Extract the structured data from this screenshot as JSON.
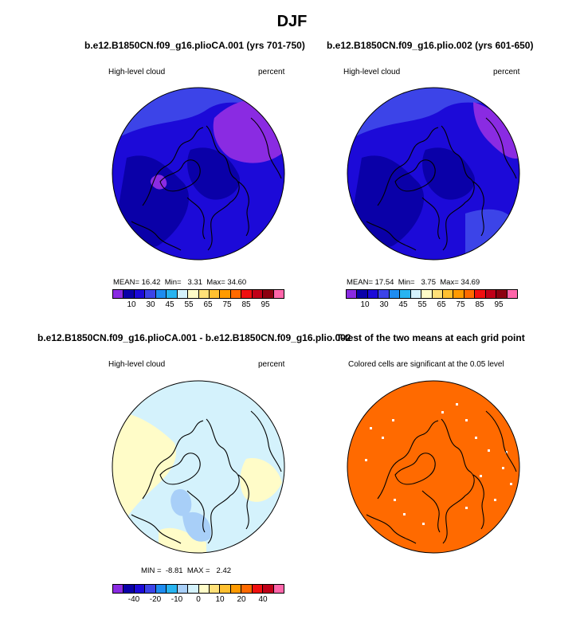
{
  "title": "DJF",
  "panels": [
    {
      "id": "p1",
      "title": "b.e12.B1850CN.f09_g16.plioCA.001 (yrs 701-750)",
      "left_label": "High-level cloud",
      "right_label": "percent",
      "stats": {
        "mean_label": "MEAN=",
        "mean": "16.42",
        "min_label": "Min=",
        "min": "3.31",
        "max_label": "Max=",
        "max": "34.60"
      },
      "colorbar_labels": [
        "10",
        "30",
        "45",
        "55",
        "65",
        "75",
        "85",
        "95"
      ]
    },
    {
      "id": "p2",
      "title": "b.e12.B1850CN.f09_g16.plio.002 (yrs 601-650)",
      "left_label": "High-level cloud",
      "right_label": "percent",
      "stats": {
        "mean_label": "MEAN=",
        "mean": "17.54",
        "min_label": "Min=",
        "min": "3.75",
        "max_label": "Max=",
        "max": "34.69"
      },
      "colorbar_labels": [
        "10",
        "30",
        "45",
        "55",
        "65",
        "75",
        "85",
        "95"
      ]
    },
    {
      "id": "p3",
      "title": "b.e12.B1850CN.f09_g16.plioCA.001 - b.e12.B1850CN.f09_g16.plio.002",
      "left_label": "High-level cloud",
      "right_label": "percent",
      "stats": {
        "min_label": "MIN =",
        "min": "-8.81",
        "max_label": "MAX =",
        "max": "2.42"
      },
      "colorbar_labels": [
        "-40",
        "-20",
        "-10",
        "0",
        "10",
        "20",
        "40"
      ]
    },
    {
      "id": "p4",
      "title": "T-test of the two means at each grid point",
      "left_label": "Colored cells are significant at the 0.05 level"
    }
  ],
  "colors": {
    "cloud_base": "#1c0ad8",
    "cloud_dark": "#0a00a8",
    "cloud_mid": "#3c44e8",
    "cloud_purple": "#8a2be2",
    "diff_base": "#d4f2fc",
    "diff_yellow": "#fffcc8",
    "diff_blue": "#a8cff8",
    "ttest_fill": "#ff6a00",
    "coast": "#000000"
  },
  "colorbar_full": [
    "#8a2be2",
    "#0a00a8",
    "#1c0ad8",
    "#3c44e8",
    "#1e8cf0",
    "#28b4f0",
    "#d4f2fc",
    "#fffcc8",
    "#ffe078",
    "#ffc030",
    "#ff9a00",
    "#ff6a00",
    "#f01010",
    "#c00018",
    "#8c0010",
    "#ff66aa"
  ],
  "colorbar_diff": [
    "#8a2be2",
    "#0a00a8",
    "#1c0ad8",
    "#3c44e8",
    "#1e8cf0",
    "#28b4f0",
    "#a8cff8",
    "#d4f2fc",
    "#fffcc8",
    "#ffe078",
    "#ffc030",
    "#ff9a00",
    "#ff6a00",
    "#f01010",
    "#c00018",
    "#ff66aa"
  ]
}
